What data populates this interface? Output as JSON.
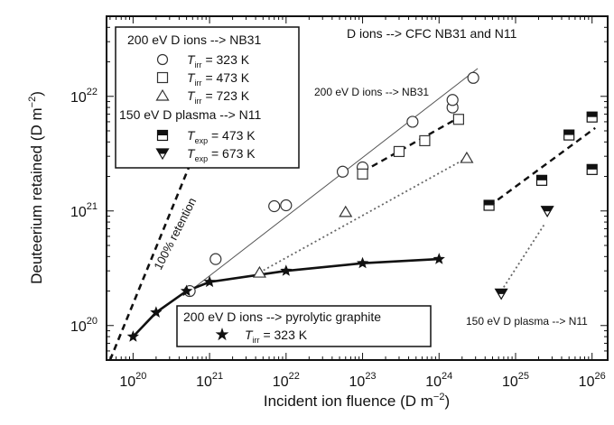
{
  "chart_data": {
    "type": "scatter",
    "title": "D ions --> CFC NB31 and N11",
    "xlabel": "Incident ion fluence (D m",
    "xlabel_sup": "−2",
    "xlabel_end": ")",
    "ylabel": "Deuteerium retained (D m",
    "ylabel_sup": "−2",
    "ylabel_end": ")",
    "x_scale": "log",
    "y_scale": "log",
    "xlim": [
      4.5e+19,
      1.6e+26
    ],
    "ylim": [
      5e+19,
      5e+22
    ],
    "x_ticks": [
      {
        "value": 1e+20,
        "base": "10",
        "exp": "20"
      },
      {
        "value": 1e+21,
        "base": "10",
        "exp": "21"
      },
      {
        "value": 1e+22,
        "base": "10",
        "exp": "22"
      },
      {
        "value": 1e+23,
        "base": "10",
        "exp": "23"
      },
      {
        "value": 1e+24,
        "base": "10",
        "exp": "24"
      },
      {
        "value": 1e+25,
        "base": "10",
        "exp": "25"
      },
      {
        "value": 1e+26,
        "base": "10",
        "exp": "26"
      }
    ],
    "y_ticks": [
      {
        "value": 1e+20,
        "base": "10",
        "exp": "20"
      },
      {
        "value": 1e+21,
        "base": "10",
        "exp": "21"
      },
      {
        "value": 1e+22,
        "base": "10",
        "exp": "22"
      }
    ],
    "legend_top": {
      "placement": "top-left",
      "header1": "200 eV D ions --> NB31",
      "header2": "150 eV D plasma --> N11",
      "items": [
        {
          "marker": "circle",
          "symbol": "T",
          "sub": "irr",
          "text": " = 323 K"
        },
        {
          "marker": "square",
          "symbol": "T",
          "sub": "irr",
          "text": " = 473 K"
        },
        {
          "marker": "triangle-up",
          "symbol": "T",
          "sub": "irr",
          "text": " = 723 K"
        },
        {
          "marker": "half-square",
          "symbol": "T",
          "sub": "exp",
          "text": " = 473 K"
        },
        {
          "marker": "half-triangle-down",
          "symbol": "T",
          "sub": "exp",
          "text": " = 673 K"
        }
      ]
    },
    "legend_bottom": {
      "placement": "bottom-center",
      "header": "200 eV D ions --> pyrolytic graphite",
      "items": [
        {
          "marker": "star",
          "symbol": "T",
          "sub": "irr",
          "text": " = 323 K"
        }
      ]
    },
    "annotations": [
      {
        "text": "200 eV D ions --> NB31",
        "x": 5e+21,
        "y": 1.2e+22
      },
      {
        "text": "150 eV D plasma --> N11",
        "x": 1e+25,
        "y": 1.35e+20
      },
      {
        "text": "100% retention",
        "x": 1.7e+20,
        "y": 3.6e+20,
        "angle": -63
      }
    ],
    "series": [
      {
        "name": "T_irr = 323 K",
        "marker": "circle",
        "color": "#333333",
        "points": [
          [
            1.2e+21,
            3.8e+20
          ],
          [
            5.5e+20,
            2e+20
          ],
          [
            7e+21,
            1.1e+21
          ],
          [
            1e+22,
            1.12e+21
          ],
          [
            5.5e+22,
            2.2e+21
          ],
          [
            1e+23,
            2.4e+21
          ],
          [
            4.5e+23,
            6e+21
          ],
          [
            1.5e+24,
            8e+21
          ],
          [
            1.5e+24,
            9.3e+21
          ],
          [
            2.8e+24,
            1.45e+22
          ]
        ]
      },
      {
        "name": "T_irr = 473 K",
        "marker": "square",
        "color": "#333333",
        "points": [
          [
            1e+23,
            2.1e+21
          ],
          [
            3e+23,
            3.3e+21
          ],
          [
            6.5e+23,
            4.1e+21
          ],
          [
            1.8e+24,
            6.3e+21
          ]
        ]
      },
      {
        "name": "T_irr = 723 K",
        "marker": "triangle-up",
        "color": "#333333",
        "points": [
          [
            4.5e+21,
            2.9e+20
          ],
          [
            6e+22,
            9.8e+20
          ],
          [
            2.3e+24,
            2.9e+21
          ]
        ]
      },
      {
        "name": "T_exp = 473 K",
        "marker": "half-square",
        "color": "#111111",
        "points": [
          [
            4.5e+24,
            1.12e+21
          ],
          [
            2.2e+25,
            1.85e+21
          ],
          [
            5e+25,
            4.6e+21
          ],
          [
            1e+26,
            2.3e+21
          ],
          [
            1e+26,
            6.6e+21
          ]
        ]
      },
      {
        "name": "T_exp = 673 K",
        "marker": "half-triangle-down",
        "color": "#111111",
        "points": [
          [
            6.5e+24,
            1.9e+20
          ],
          [
            2.6e+25,
            1e+21
          ]
        ]
      },
      {
        "name": "T_irr = 323 K (pyrolytic graphite)",
        "marker": "star",
        "color": "#111111",
        "points": [
          [
            1e+20,
            8e+19
          ],
          [
            2e+20,
            1.3e+20
          ],
          [
            5e+20,
            2e+20
          ],
          [
            1e+21,
            2.4e+20
          ],
          [
            1e+22,
            3e+20
          ],
          [
            1e+23,
            3.5e+20
          ],
          [
            1e+24,
            3.8e+20
          ]
        ]
      }
    ],
    "lines": [
      {
        "name": "100% retention",
        "style": "dashed",
        "width": 2.6,
        "color": "#111111",
        "points": [
          [
            5e+19,
            5e+19
          ],
          [
            1.9e+21,
            1.9e+22
          ]
        ]
      },
      {
        "name": "NB31 323 K fit",
        "style": "solid",
        "width": 1,
        "color": "#555555",
        "points": [
          [
            5e+20,
            1.9e+20
          ],
          [
            3.2e+24,
            1.75e+22
          ]
        ]
      },
      {
        "name": "NB31 473 K fit",
        "style": "dashed",
        "width": 2.4,
        "color": "#111111",
        "points": [
          [
            1e+23,
            2.2e+21
          ],
          [
            1.8e+24,
            6.5e+21
          ]
        ]
      },
      {
        "name": "NB31 723 K fit",
        "style": "dotted",
        "width": 1.8,
        "color": "#666666",
        "points": [
          [
            4.5e+21,
            2.9e+20
          ],
          [
            2.3e+24,
            2.9e+21
          ]
        ]
      },
      {
        "name": "N11 473 K fit",
        "style": "dashed",
        "width": 2.4,
        "color": "#111111",
        "points": [
          [
            4.5e+24,
            1.1e+21
          ],
          [
            1.1e+26,
            5.3e+21
          ]
        ]
      },
      {
        "name": "N11 673 K fit",
        "style": "dotted",
        "width": 1.8,
        "color": "#666666",
        "points": [
          [
            6.5e+24,
            2e+20
          ],
          [
            2.4e+25,
            7.7e+20
          ]
        ]
      },
      {
        "name": "pyrolytic graphite fit",
        "style": "solid",
        "width": 2.6,
        "color": "#111111",
        "points": [
          [
            1e+20,
            8e+19
          ],
          [
            2e+20,
            1.3e+20
          ],
          [
            5e+20,
            2e+20
          ],
          [
            1e+21,
            2.4e+20
          ],
          [
            1e+22,
            3e+20
          ],
          [
            1e+23,
            3.5e+20
          ],
          [
            1e+24,
            3.8e+20
          ]
        ]
      }
    ]
  }
}
